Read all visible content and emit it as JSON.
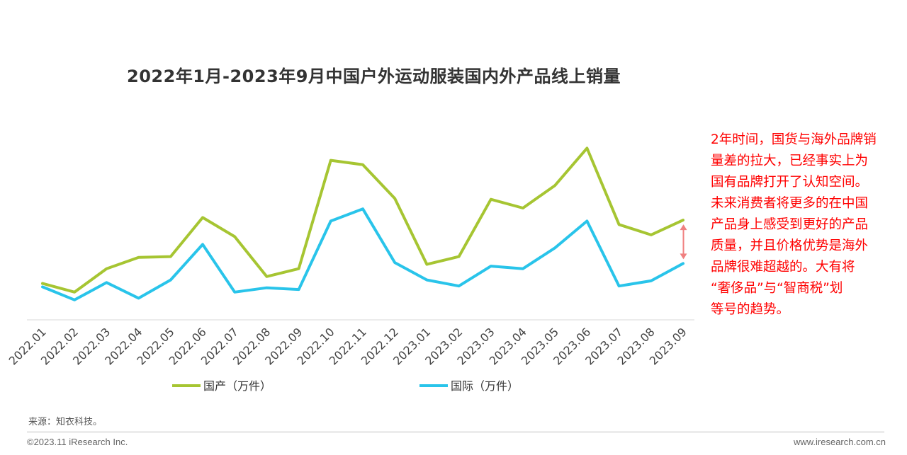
{
  "chart_data": {
    "type": "line",
    "title": "2022年1月-2023年9月中国户外运动服装国内外产品线上销量",
    "categories": [
      "2022.01",
      "2022.02",
      "2022.03",
      "2022.04",
      "2022.05",
      "2022.06",
      "2022.07",
      "2022.08",
      "2022.09",
      "2022.10",
      "2022.11",
      "2022.12",
      "2023.01",
      "2023.02",
      "2023.03",
      "2023.04",
      "2023.05",
      "2023.06",
      "2023.07",
      "2023.08",
      "2023.09"
    ],
    "series": [
      {
        "name": "国产（万件）",
        "color": "#a6c532",
        "values": [
          42,
          32,
          59,
          72,
          73,
          118,
          96,
          50,
          59,
          184,
          179,
          140,
          64,
          73,
          139,
          129,
          155,
          198,
          110,
          98,
          115
        ]
      },
      {
        "name": "国际（万件）",
        "color": "#29c4ea",
        "values": [
          38,
          23,
          43,
          25,
          46,
          87,
          32,
          37,
          35,
          114,
          128,
          66,
          46,
          39,
          62,
          59,
          83,
          114,
          39,
          45,
          65
        ]
      }
    ],
    "ylim": [
      0,
      240
    ],
    "grid": false,
    "legend_position": "bottom",
    "gap_arrow_color": "#f08080"
  },
  "annotation": {
    "lines": [
      "2年时间，国货与海外品牌销",
      "量差的拉大，已经事实上为",
      "国有品牌打开了认知空间。",
      "未来消费者将更多的在中国",
      "产品身上感受到更好的产品",
      "质量，并且价格优势是海外",
      "品牌很难超越的。大有将",
      "“奢侈品”与“智商税”划",
      "等号的趋势。"
    ]
  },
  "source": "来源：知衣科技。",
  "footer": {
    "copyright": "©2023.11 iResearch Inc.",
    "site": "www.iresearch.com.cn"
  }
}
